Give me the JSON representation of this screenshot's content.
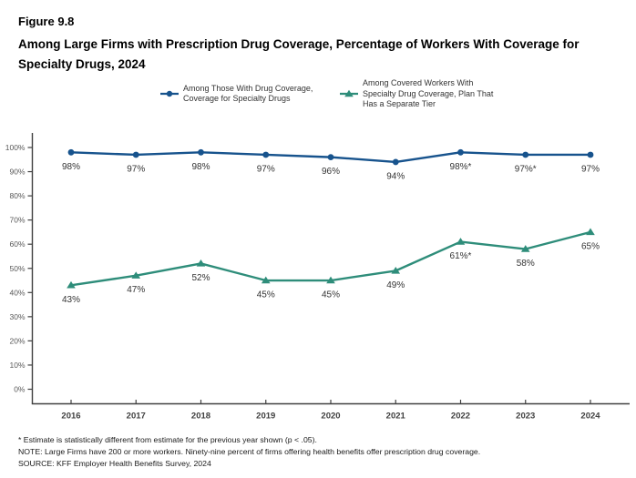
{
  "header": {
    "figure_number": "Figure 9.8",
    "title": "Among Large Firms with Prescription Drug Coverage, Percentage of Workers With Coverage for Specialty Drugs, 2024"
  },
  "legend": {
    "items": [
      {
        "marker": "circle",
        "color": "#17538d",
        "lines": [
          "Among Those With Drug Coverage,",
          "Coverage for Specialty Drugs"
        ]
      },
      {
        "marker": "triangle",
        "color": "#2e8d7a",
        "lines": [
          "Among Covered Workers With",
          "Specialty Drug Coverage, Plan That",
          "Has a Separate Tier"
        ]
      }
    ]
  },
  "chart_data": {
    "type": "line",
    "title": "Among Large Firms with Prescription Drug Coverage, Percentage of Workers With Coverage for Specialty Drugs, 2024",
    "categories": [
      "2016",
      "2017",
      "2018",
      "2019",
      "2020",
      "2021",
      "2022",
      "2023",
      "2024"
    ],
    "series": [
      {
        "name": "Among Those With Drug Coverage, Coverage for Specialty Drugs",
        "marker": "circle",
        "color": "#17538d",
        "values": [
          98,
          97,
          98,
          97,
          96,
          94,
          98,
          97,
          97
        ],
        "labels": [
          "98%",
          "97%",
          "98%",
          "97%",
          "96%",
          "94%",
          "98%*",
          "97%*",
          "97%"
        ]
      },
      {
        "name": "Among Covered Workers With Specialty Drug Coverage, Plan That Has a Separate Tier",
        "marker": "triangle",
        "color": "#2e8d7a",
        "values": [
          43,
          47,
          52,
          45,
          45,
          49,
          61,
          58,
          65
        ],
        "labels": [
          "43%",
          "47%",
          "52%",
          "45%",
          "45%",
          "49%",
          "61%*",
          "58%",
          "65%"
        ]
      }
    ],
    "xlabel": "",
    "ylabel": "",
    "ylim": [
      0,
      100
    ],
    "ytick_step": 10,
    "ytick_suffix": "%",
    "grid": false,
    "legend_position": "top"
  },
  "colors": {
    "axis": "#404040",
    "ytick_label": "#595959",
    "xtick_label": "#404040",
    "data_label": "#333333"
  },
  "footnotes": [
    "* Estimate is statistically different from estimate for the previous year shown (p < .05).",
    "NOTE: Large Firms have 200 or more workers. Ninety-nine percent of firms offering health benefits offer prescription drug coverage.",
    "SOURCE: KFF Employer Health Benefits Survey, 2024"
  ]
}
